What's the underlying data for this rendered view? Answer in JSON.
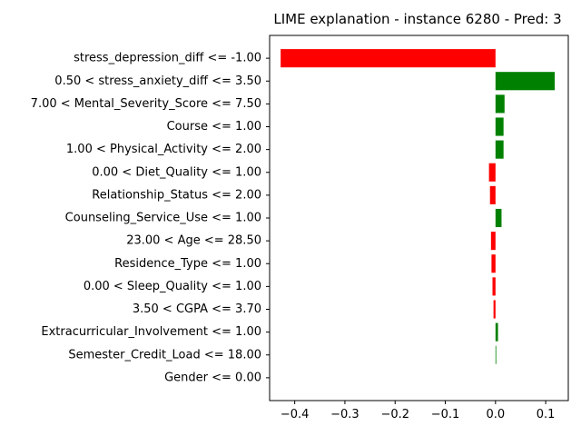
{
  "chart_data": {
    "type": "bar",
    "orientation": "horizontal",
    "title": "LIME explanation - instance 6280 - Pred: 3",
    "xlabel": "",
    "ylabel": "",
    "xlim": [
      -0.45,
      0.145
    ],
    "xticks": [
      -0.4,
      -0.3,
      -0.2,
      -0.1,
      0.0,
      0.1
    ],
    "xtick_labels": [
      "−0.4",
      "−0.3",
      "−0.2",
      "−0.1",
      "0.0",
      "0.1"
    ],
    "grid": false,
    "legend": "none",
    "colors": {
      "positive": "#008000",
      "negative": "#ff0000"
    },
    "categories": [
      "stress_depression_diff <= -1.00",
      "0.50 < stress_anxiety_diff <= 3.50",
      "7.00 < Mental_Severity_Score <= 7.50",
      "Course <= 1.00",
      "1.00 < Physical_Activity <= 2.00",
      "0.00 < Diet_Quality <= 1.00",
      "Relationship_Status <= 2.00",
      "Counseling_Service_Use <= 1.00",
      "23.00 < Age <= 28.50",
      "Residence_Type <= 1.00",
      "0.00 < Sleep_Quality <= 1.00",
      "3.50 < CGPA <= 3.70",
      "Extracurricular_Involvement <= 1.00",
      "Semester_Credit_Load <= 18.00",
      "Gender <= 0.00"
    ],
    "values": [
      -0.428,
      0.118,
      0.018,
      0.016,
      0.016,
      -0.013,
      -0.011,
      0.012,
      -0.009,
      -0.008,
      -0.006,
      -0.004,
      0.005,
      0.001,
      0.0
    ]
  }
}
